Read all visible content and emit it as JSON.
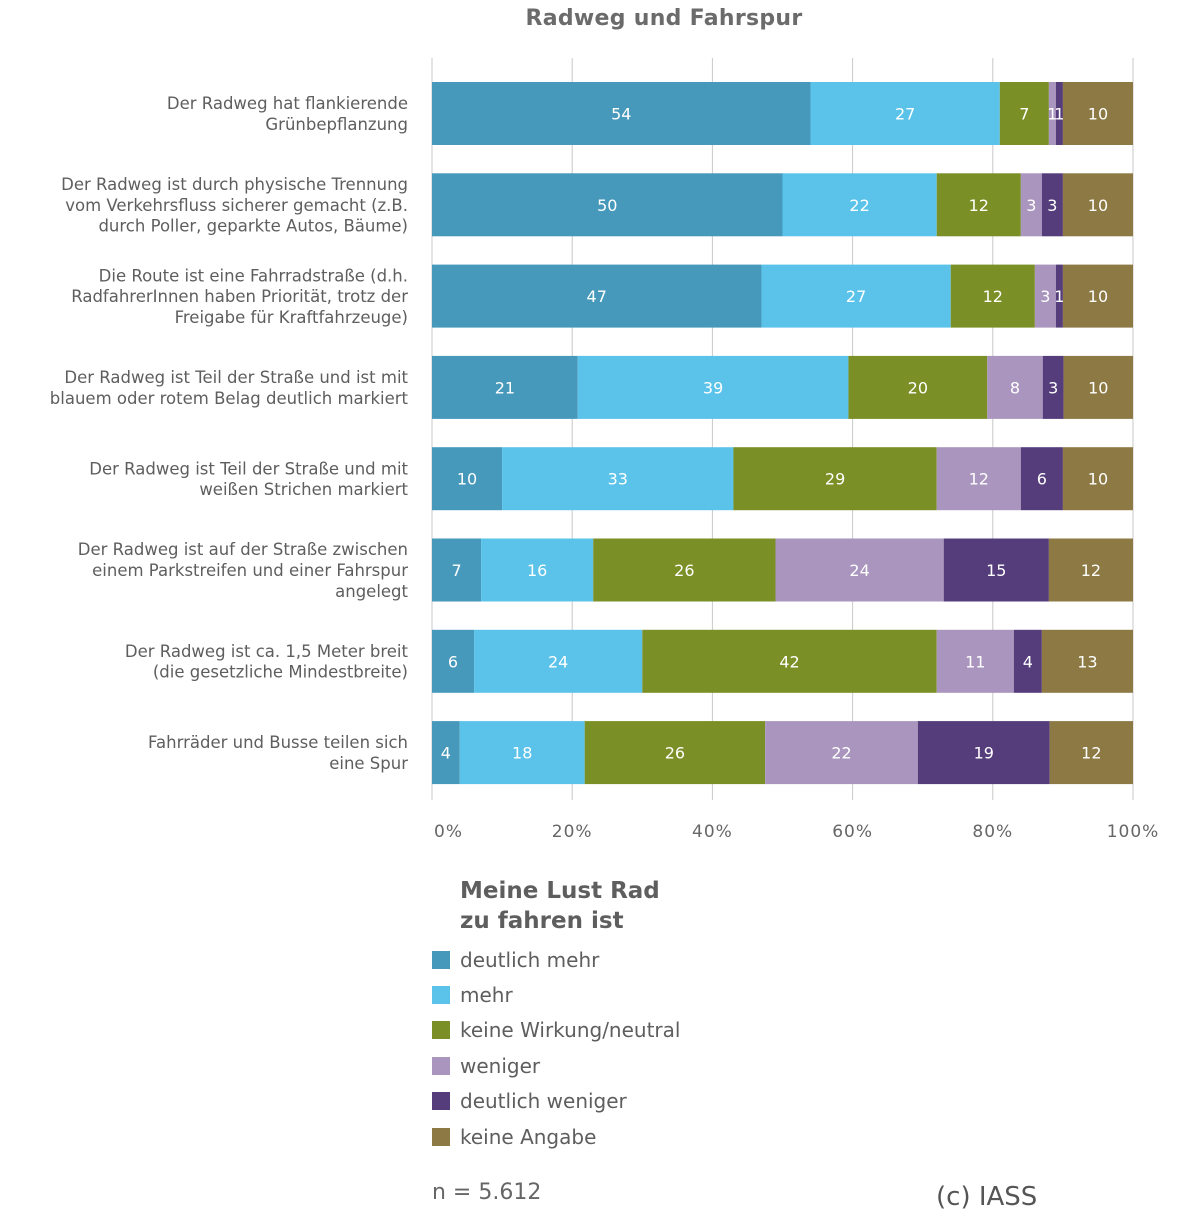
{
  "chart_data": {
    "type": "bar",
    "orientation": "horizontal",
    "stacked": true,
    "title": "Radweg und Fahrspur",
    "categories": [
      "Der Radweg hat flankierende\nGrünbepflanzung",
      "Der Radweg ist durch physische Trennung\nvom Verkehrsfluss sicherer gemacht (z.B.\ndurch Poller, geparkte Autos, Bäume)",
      "Die Route ist eine Fahrradstraße (d.h.\nRadfahrerInnen haben Priorität, trotz der\nFreigabe für Kraftfahrzeuge)",
      "Der Radweg ist Teil der Straße und ist mit\nblauem oder rotem Belag deutlich markiert",
      "Der Radweg ist Teil der Straße und mit\nweißen Strichen markiert",
      "Der Radweg ist auf der Straße zwischen\neinem Parkstreifen und einer Fahrspur\nangelegt",
      "Der Radweg ist ca. 1,5 Meter breit\n(die gesetzliche Mindestbreite)",
      "Fahrräder und Busse teilen sich\neine Spur"
    ],
    "series": [
      {
        "name": "deutlich mehr",
        "color": "#4699bb",
        "values": [
          54,
          50,
          47,
          21,
          10,
          7,
          6,
          4
        ]
      },
      {
        "name": "mehr",
        "color": "#5bc3ea",
        "values": [
          27,
          22,
          27,
          39,
          33,
          16,
          24,
          18
        ]
      },
      {
        "name": "keine Wirkung/neutral",
        "color": "#7a8f25",
        "values": [
          7,
          12,
          12,
          20,
          29,
          26,
          42,
          26
        ]
      },
      {
        "name": "weniger",
        "color": "#a995bd",
        "values": [
          1,
          3,
          3,
          8,
          12,
          24,
          11,
          22
        ]
      },
      {
        "name": "deutlich weniger",
        "color": "#553c7b",
        "values": [
          1,
          3,
          1,
          3,
          6,
          15,
          4,
          19
        ]
      },
      {
        "name": "keine Angabe",
        "color": "#8c7943",
        "values": [
          10,
          10,
          10,
          10,
          10,
          12,
          13,
          12
        ]
      }
    ],
    "xlim": [
      0,
      100
    ],
    "x_ticks": [
      "0%",
      "20%",
      "40%",
      "60%",
      "80%",
      "100%"
    ],
    "grid": true,
    "legend_title": "Meine Lust Rad\nzu fahren ist",
    "legend_position": "bottom"
  },
  "footer": {
    "sample_size": "n = 5.612",
    "copyright": "(c) IASS"
  }
}
